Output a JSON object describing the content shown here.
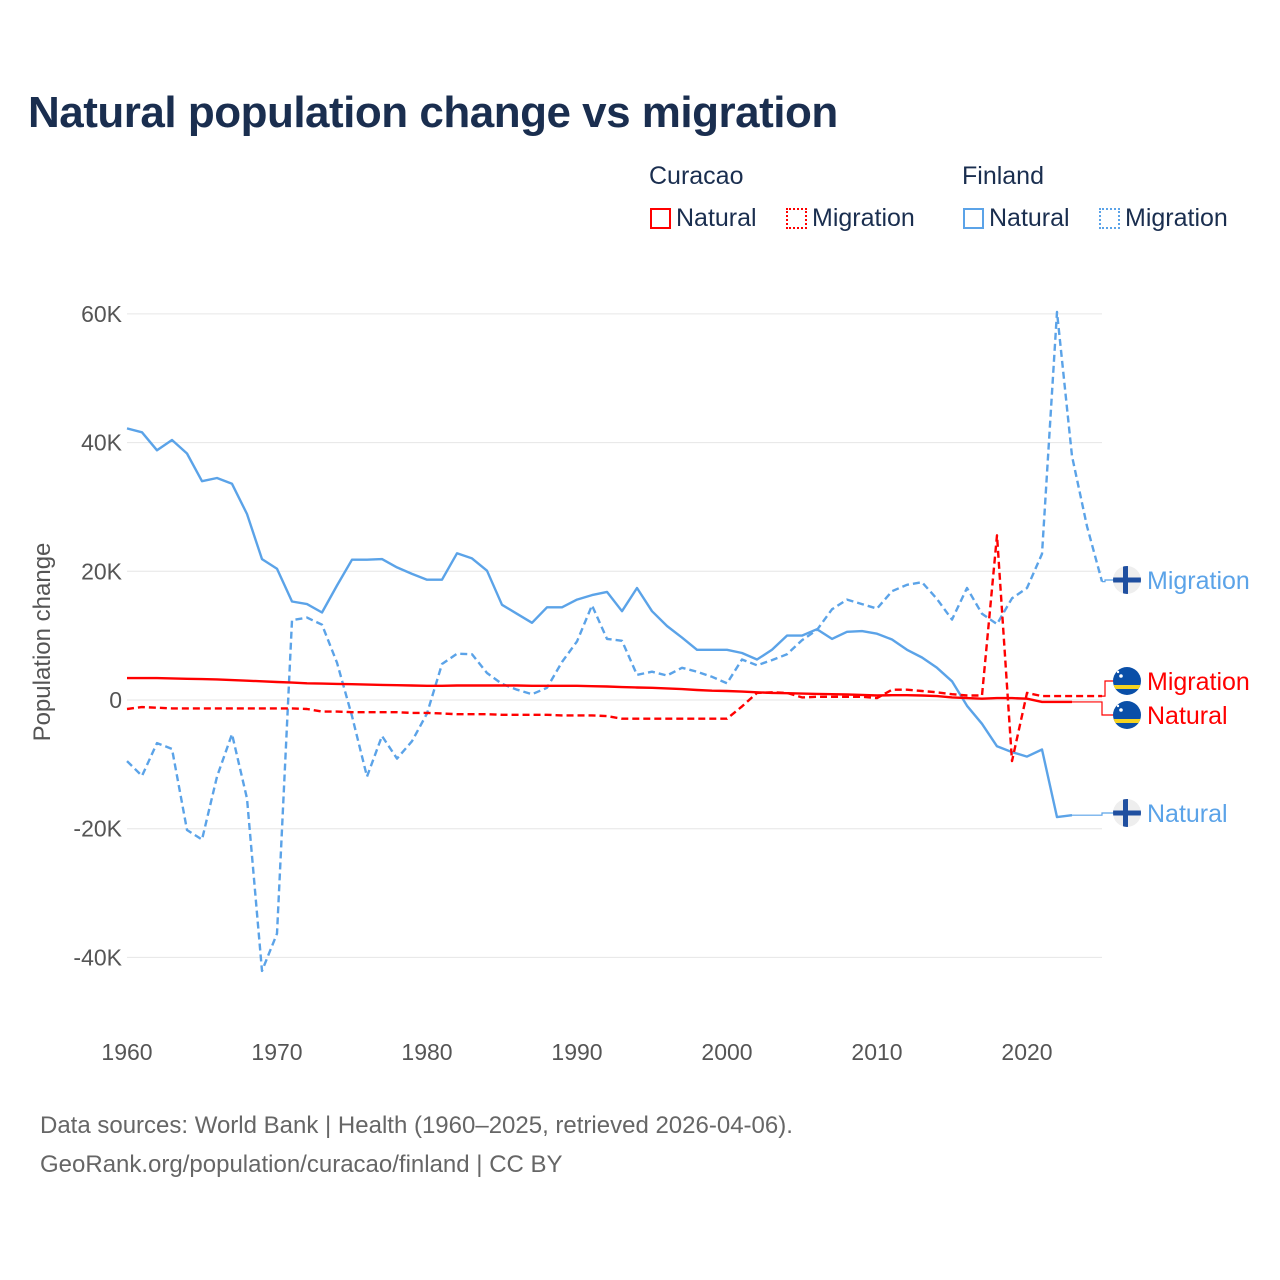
{
  "title": "Natural population change vs migration",
  "legend": {
    "groups": [
      {
        "name": "Curacao",
        "items": [
          {
            "label": "Natural",
            "style": "solid",
            "color": "#ff0000"
          },
          {
            "label": "Migration",
            "style": "dotted",
            "color": "#ff0000"
          }
        ]
      },
      {
        "name": "Finland",
        "items": [
          {
            "label": "Natural",
            "style": "solid",
            "color": "#5ba3e8"
          },
          {
            "label": "Migration",
            "style": "dotted",
            "color": "#5ba3e8"
          }
        ]
      }
    ]
  },
  "footer": {
    "line1": "Data sources: World Bank | Health (1960–2025, retrieved 2026-04-06).",
    "line2": "GeoRank.org/population/curacao/finland | CC BY"
  },
  "chart_data": {
    "type": "line",
    "title": "Natural population change vs migration",
    "xlabel": "",
    "ylabel": "Population change",
    "xlim": [
      1960,
      2025
    ],
    "ylim": [
      -50000,
      60000
    ],
    "x_ticks": [
      1960,
      1970,
      1980,
      1990,
      2000,
      2010,
      2020
    ],
    "x_tick_labels": [
      "1960",
      "1970",
      "1980",
      "1990",
      "2000",
      "2010",
      "2020"
    ],
    "y_ticks": [
      -40000,
      -20000,
      0,
      20000,
      40000,
      60000
    ],
    "y_tick_labels": [
      "-40K",
      "-20K",
      "0",
      "20K",
      "40K",
      "60K"
    ],
    "grid": true,
    "legend_position": "top-right",
    "series": [
      {
        "name": "Finland Natural",
        "country": "Finland",
        "kind": "Natural",
        "end_label": "Natural",
        "color": "#5ba3e8",
        "dash": "solid",
        "start_year": 1960,
        "values": [
          42200,
          41600,
          38800,
          40400,
          38300,
          34000,
          34500,
          33600,
          28900,
          21900,
          20400,
          15300,
          14900,
          13600,
          17800,
          21800,
          21800,
          21900,
          20600,
          19600,
          18700,
          18700,
          22800,
          22000,
          20100,
          14800,
          13400,
          12000,
          14400,
          14400,
          15600,
          16300,
          16800,
          13800,
          17400,
          13800,
          11500,
          9700,
          7800,
          7800,
          7800,
          7300,
          6300,
          7800,
          10000,
          10000,
          11000,
          9500,
          10600,
          10700,
          10300,
          9400,
          7800,
          6600,
          5000,
          2900,
          -900,
          -3700,
          -7200,
          -8100,
          -8800,
          -7700,
          -18200,
          -17900
        ]
      },
      {
        "name": "Finland Migration",
        "country": "Finland",
        "kind": "Migration",
        "end_label": "Migration",
        "color": "#5ba3e8",
        "dash": "dashed",
        "start_year": 1960,
        "values": [
          -9500,
          -11800,
          -6700,
          -7600,
          -20200,
          -21700,
          -11900,
          -5300,
          -15300,
          -42100,
          -36300,
          12400,
          12800,
          11700,
          5800,
          -2500,
          -11900,
          -5600,
          -9100,
          -6400,
          -2100,
          5600,
          7200,
          7100,
          4200,
          2500,
          1600,
          900,
          1900,
          5900,
          9100,
          14700,
          9500,
          9200,
          3900,
          4400,
          3800,
          5000,
          4400,
          3600,
          2600,
          6300,
          5400,
          6200,
          7100,
          9300,
          10900,
          14100,
          15600,
          14900,
          14200,
          16900,
          17900,
          18300,
          15700,
          12500,
          17400,
          13400,
          11800,
          15800,
          17400,
          22700,
          60300,
          37900,
          27000,
          18400
        ]
      },
      {
        "name": "Curacao Natural",
        "country": "Curacao",
        "kind": "Natural",
        "end_label": "Natural",
        "color": "#ff0000",
        "dash": "solid",
        "start_year": 1960,
        "values": [
          3400,
          3400,
          3400,
          3350,
          3300,
          3250,
          3200,
          3100,
          3000,
          2900,
          2800,
          2700,
          2600,
          2550,
          2500,
          2450,
          2400,
          2350,
          2300,
          2250,
          2200,
          2200,
          2250,
          2250,
          2250,
          2250,
          2250,
          2200,
          2200,
          2200,
          2200,
          2150,
          2100,
          2000,
          1950,
          1900,
          1800,
          1700,
          1550,
          1450,
          1400,
          1300,
          1200,
          1100,
          1050,
          1000,
          950,
          900,
          850,
          800,
          700,
          750,
          750,
          700,
          600,
          400,
          300,
          200,
          300,
          300,
          200,
          -300,
          -300,
          -300
        ]
      },
      {
        "name": "Curacao Migration",
        "country": "Curacao",
        "kind": "Migration",
        "end_label": "Migration",
        "color": "#ff0000",
        "dash": "dashed",
        "start_year": 1960,
        "values": [
          -1400,
          -1100,
          -1200,
          -1300,
          -1300,
          -1300,
          -1300,
          -1300,
          -1300,
          -1300,
          -1300,
          -1300,
          -1400,
          -1800,
          -1800,
          -1900,
          -1900,
          -1900,
          -1900,
          -2000,
          -2000,
          -2100,
          -2200,
          -2200,
          -2200,
          -2300,
          -2300,
          -2300,
          -2300,
          -2400,
          -2400,
          -2400,
          -2500,
          -2900,
          -2900,
          -2900,
          -2900,
          -2900,
          -2900,
          -2900,
          -2900,
          -1000,
          1100,
          1200,
          1100,
          400,
          500,
          500,
          500,
          500,
          300,
          1600,
          1600,
          1400,
          1200,
          900,
          700,
          700,
          25600,
          -9500,
          1100,
          600,
          600,
          600,
          600,
          600
        ]
      }
    ]
  }
}
